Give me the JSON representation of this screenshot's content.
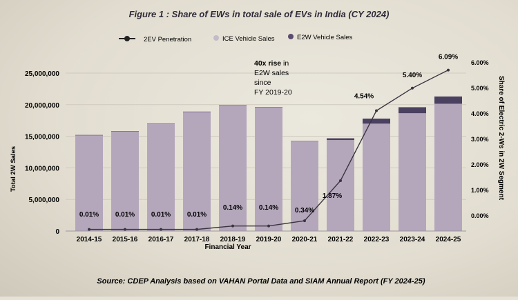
{
  "chart_data": {
    "type": "bar",
    "title": "Figure 1 : Share of EWs in total sale of EVs in India (CY 2024)",
    "xlabel": "Financial Year",
    "ylabel": "Total 2W Sales",
    "y2label": "Share of Electric 2-Ws in 2W Segment",
    "categories": [
      "2014-15",
      "2015-16",
      "2016-17",
      "2017-18",
      "2018-19",
      "2019-20",
      "2020-21",
      "2021-22",
      "2022-23",
      "2023-24",
      "2024-25"
    ],
    "series": [
      {
        "name": "ICE Vehicle Sales",
        "type": "bar",
        "stack": "sales",
        "color": "#b4a7bc",
        "values": [
          15200000,
          15800000,
          17000000,
          18900000,
          19900000,
          19600000,
          14200000,
          14400000,
          17000000,
          18650000,
          20150000
        ]
      },
      {
        "name": "E2W Vehicle Sales",
        "type": "bar",
        "stack": "sales",
        "color": "#4a4060",
        "values": [
          1500,
          2000,
          2000,
          2000,
          28000,
          27000,
          48000,
          280000,
          800000,
          950000,
          1150000
        ]
      },
      {
        "name": "2EV Penetration",
        "type": "line",
        "axis": "right",
        "color": "#3a3440",
        "values": [
          0.01,
          0.01,
          0.01,
          0.01,
          0.14,
          0.14,
          0.34,
          1.87,
          4.54,
          5.4,
          6.09
        ],
        "labels": [
          "0.01%",
          "0.01%",
          "0.01%",
          "0.01%",
          "0.14%",
          "0.14%",
          "0.34%",
          "1.87%",
          "4.54%",
          "5.40%",
          "6.09%"
        ]
      }
    ],
    "ylim": [
      0,
      25000000
    ],
    "yticks": [
      "0",
      "5,000,000",
      "10,000,000",
      "15,000,000",
      "20,000,000",
      "25,000,000"
    ],
    "y2lim": [
      0,
      6
    ],
    "y2ticks": [
      "0.00%",
      "1.00%",
      "2.00%",
      "3.00%",
      "4.00%",
      "5.00%",
      "6.00%"
    ],
    "legend": "top",
    "grid": true,
    "annotation": {
      "bold": "40x rise",
      "lines": [
        "in",
        "E2W sales",
        "since",
        "FY 2019-20"
      ]
    },
    "source": "Source: CDEP Analysis based on VAHAN Portal Data and SIAM Annual Report (FY 2024-25)"
  }
}
